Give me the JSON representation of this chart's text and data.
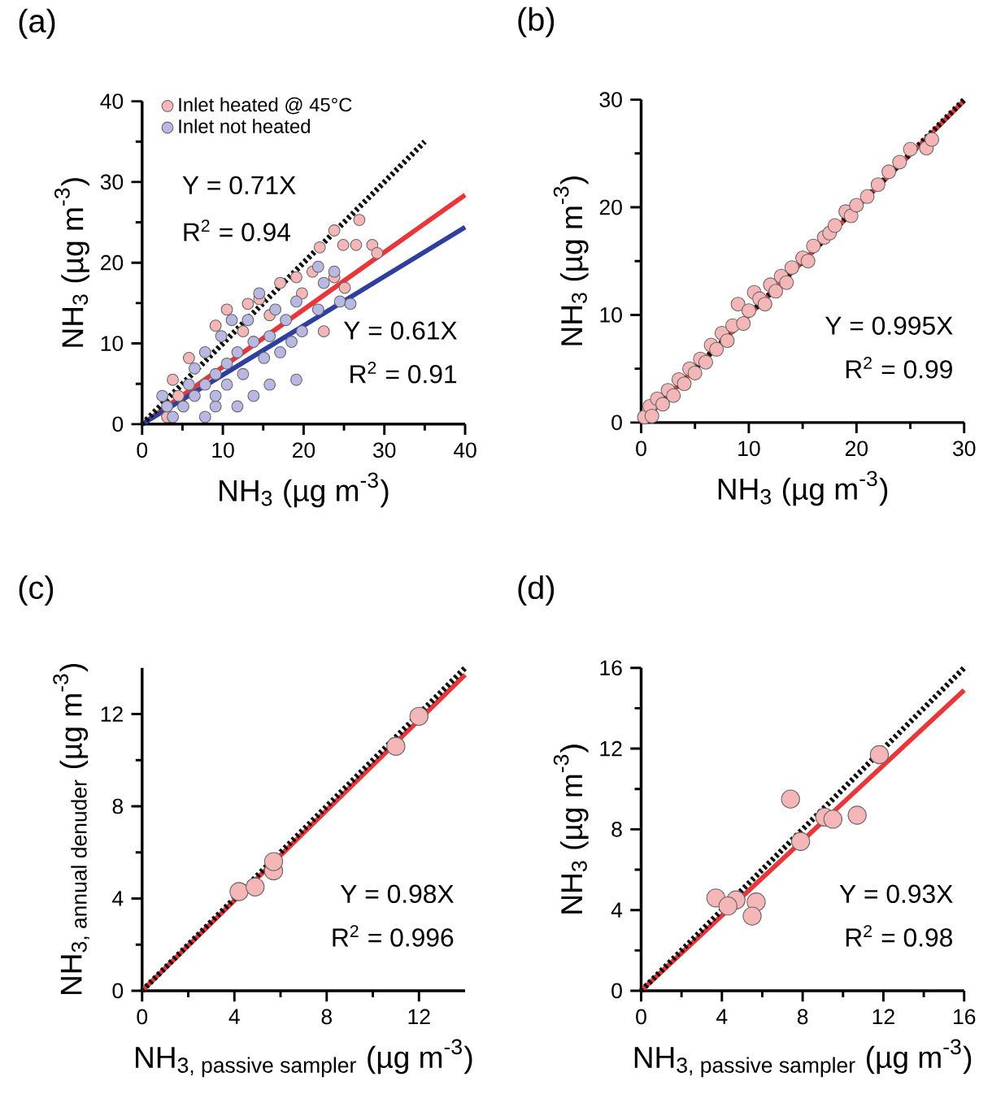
{
  "chart_data": [
    {
      "type": "scatter",
      "title": "(a)",
      "xlabel": "\\mbox{NH}_{\\mbox{\\fontsize{10}{12}\\selectfont 3}}\\mbox{ (µg m}^{\\mbox{\\fontsize{10}{12}\\selectfont -3}}\\mbox{)}",
      "ylabel": "\\mbox{NH}_{\\mbox{\\fontsize{10}{12}\\selectfont 3}}\\mbox{ (µg m}^{\\mbox{\\fontsize{10}{12}\\selectfont -3}}\\mbox{)}",
      "xlim": [
        0,
        40
      ],
      "ylim": [
        0,
        40
      ],
      "xticks": [
        0,
        10,
        20,
        30,
        40
      ],
      "yticks": [
        0,
        10,
        20,
        30,
        40
      ],
      "legend": "top left",
      "annotations": [
        "Y = 0.71X",
        "R$^{2}$ = 0.94",
        "Y = 0.61X",
        "R$^{2}$ = 0.91"
      ],
      "series": [
        {
          "name": "Inlet heated @ 45°C",
          "marker": "circle",
          "color": "#f4b6b6",
          "x": [
            23.8,
            26.9,
            22,
            24.9,
            26.5,
            28.5,
            29.1,
            21.1,
            22.5,
            19.1,
            17.1,
            14.5,
            13.1,
            10.5,
            9.1,
            5.8,
            3.8,
            3.1,
            25.1,
            23.8,
            4.5,
            15.8,
            19.8,
            12.5
          ],
          "values": [
            24,
            25.3,
            21.9,
            22.2,
            22.2,
            22.2,
            21.2,
            18.9,
            11.5,
            18.2,
            17.5,
            15.5,
            14.9,
            14.2,
            12.2,
            8.2,
            5.5,
            0.9,
            16.9,
            18.2,
            3.5,
            13.5,
            16.2,
            11.5
          ]
        },
        {
          "name": "Inlet not heated",
          "marker": "circle",
          "color": "#b8b8e2",
          "x": [
            24.5,
            25.8,
            22.5,
            23.8,
            21.8,
            19.1,
            19.1,
            17.1,
            15.8,
            14.5,
            13.1,
            11.8,
            10.5,
            9.1,
            7.8,
            5.8,
            6.5,
            5.1,
            3.1,
            2.5,
            9.8,
            11.1,
            7.8,
            12.5,
            15.8,
            13.8,
            17.8,
            16.5,
            19.8,
            21.8,
            9.1,
            10.5,
            15.1,
            18.5,
            13.8,
            7.8,
            11.8,
            3.8,
            6.5,
            9.1
          ],
          "values": [
            15.2,
            14.9,
            17.5,
            18.9,
            19.5,
            15.2,
            5.5,
            8.9,
            10.9,
            16.2,
            12.9,
            8.9,
            4.9,
            2.2,
            0.9,
            4.9,
            6.9,
            2.2,
            2.2,
            3.5,
            10.9,
            12.9,
            8.9,
            6.2,
            4.9,
            3.5,
            12.9,
            14.2,
            11.5,
            14.2,
            6.2,
            7.5,
            8.2,
            10.2,
            10.2,
            4.9,
            2.2,
            0.9,
            3.5,
            3.5
          ]
        },
        {
          "type": "line",
          "marker": "none",
          "color": "#e8373b",
          "line_style": "solid",
          "x": [
            0,
            40
          ],
          "values": [
            0,
            28.4
          ]
        },
        {
          "type": "line",
          "marker": "none",
          "color": "#2f3f9e",
          "line_style": "solid",
          "x": [
            0,
            40
          ],
          "values": [
            0,
            24.4
          ]
        },
        {
          "type": "line",
          "marker": "none",
          "color": "#111111",
          "line_style": "dotted",
          "x": [
            0,
            35
          ],
          "values": [
            0,
            35
          ]
        }
      ]
    },
    {
      "type": "scatter",
      "title": "(b)",
      "xlabel": "\\mbox{NH}_{\\mbox{\\fontsize{10}{12}\\selectfont 3}}\\mbox{ (µg m}^{\\mbox{\\fontsize{10}{12}\\selectfont -3}}\\mbox{)}",
      "ylabel": "\\mbox{NH}_{\\mbox{\\fontsize{10}{12}\\selectfont 3}}\\mbox{ (µg m}^{\\mbox{\\fontsize{10}{12}\\selectfont -3}}\\mbox{)}",
      "xlim": [
        0,
        30
      ],
      "ylim": [
        0,
        30
      ],
      "xticks": [
        0,
        10,
        20,
        30
      ],
      "yticks": [
        0,
        10,
        20,
        30
      ],
      "annotations": [
        "Y = 0.995X",
        "R$^{2}$ = 0.99"
      ],
      "series": [
        {
          "marker": "circle",
          "color": "#f4b6b6",
          "x": [
            0.3,
            0.8,
            1,
            1.5,
            2,
            2.5,
            3,
            3.5,
            4,
            4.5,
            5,
            5.5,
            6,
            6.5,
            7,
            7.5,
            8,
            8.5,
            9,
            9.5,
            10,
            10.5,
            11,
            11.5,
            12,
            12.5,
            13,
            13.5,
            14,
            15,
            15.5,
            16,
            17,
            17.5,
            18,
            19,
            19.5,
            20,
            21,
            22,
            23,
            24,
            25,
            26.5,
            27
          ],
          "values": [
            0.5,
            1.5,
            0.6,
            2.2,
            1.7,
            3,
            2.5,
            4,
            3.6,
            5,
            4.6,
            5.9,
            5.6,
            7.2,
            6.8,
            8.3,
            7.6,
            9,
            11,
            9.2,
            10.4,
            12.1,
            11.5,
            11,
            12.8,
            12.2,
            13.6,
            13,
            14.4,
            15.3,
            15,
            16.4,
            17.2,
            17.6,
            18.3,
            19.6,
            19.2,
            20.2,
            21,
            22.1,
            23.3,
            24.2,
            25.4,
            25.5,
            26.3
          ]
        },
        {
          "type": "line",
          "marker": "none",
          "color": "#e8373b",
          "line_style": "solid",
          "x": [
            0,
            30
          ],
          "values": [
            0,
            29.9
          ]
        },
        {
          "type": "line",
          "marker": "none",
          "color": "#111111",
          "line_style": "dotted",
          "x": [
            0,
            30
          ],
          "values": [
            0,
            30
          ]
        }
      ]
    },
    {
      "type": "scatter",
      "title": "(c)",
      "xlabel": "\\mbox{NH}_{\\mbox{\\fontsize{10}{12}\\selectfont 3, passive sampler}}\\mbox{ (µg m}^{\\mbox{\\fontsize{10}{12}\\selectfont -3}}\\mbox{)}",
      "ylabel": "\\mbox{NH}_{\\mbox{\\fontsize{10}{12}\\selectfont 3, annual denuder}}\\mbox{ (µg m}^{\\mbox{\\fontsize{10}{12}\\selectfont -3}}\\mbox{)}",
      "xlim": [
        0,
        14
      ],
      "ylim": [
        0,
        14
      ],
      "xticks": [
        0,
        4,
        8,
        12
      ],
      "yticks": [
        0,
        4,
        8,
        12
      ],
      "annotations": [
        "Y = 0.98X",
        "R$^{2}$ = 0.996"
      ],
      "series": [
        {
          "marker": "circle",
          "color": "#f4b6b6",
          "x": [
            4.2,
            4.9,
            5.7,
            5.7,
            11,
            12
          ],
          "values": [
            4.3,
            4.5,
            5.2,
            5.6,
            10.6,
            11.9
          ]
        },
        {
          "type": "line",
          "marker": "none",
          "color": "#e8373b",
          "line_style": "solid",
          "x": [
            0,
            14
          ],
          "values": [
            0,
            13.7
          ]
        },
        {
          "type": "line",
          "marker": "none",
          "color": "#111111",
          "line_style": "dotted",
          "x": [
            0,
            14
          ],
          "values": [
            0,
            14
          ]
        }
      ]
    },
    {
      "type": "scatter",
      "title": "(d)",
      "xlabel": "\\mbox{NH}_{\\mbox{\\fontsize{10}{12}\\selectfont 3, passive sampler}}\\mbox{ (µg m}^{\\mbox{\\fontsize{10}{12}\\selectfont -3}}\\mbox{)}",
      "ylabel": "\\mbox{NH}_{\\mbox{\\fontsize{10}{12}\\selectfont 3}}\\mbox{ (µg m}^{\\mbox{\\fontsize{10}{12}\\selectfont -3}}\\mbox{)}",
      "xlim": [
        0,
        16
      ],
      "ylim": [
        0,
        16
      ],
      "xticks": [
        0,
        4,
        8,
        12,
        16
      ],
      "yticks": [
        0,
        4,
        8,
        12,
        16
      ],
      "annotations": [
        "Y = 0.93X",
        "R$^{2}$ = 0.98"
      ],
      "series": [
        {
          "marker": "circle",
          "color": "#f4b6b6",
          "x": [
            7.4,
            7.9,
            9.1,
            9.5,
            10.7,
            11.8,
            3.7,
            4.7,
            5.7,
            5.5,
            4.3
          ],
          "values": [
            9.5,
            7.4,
            8.6,
            8.5,
            8.7,
            11.7,
            4.6,
            4.5,
            4.4,
            3.7,
            4.2
          ]
        },
        {
          "type": "line",
          "marker": "none",
          "color": "#e8373b",
          "line_style": "solid",
          "x": [
            0,
            16
          ],
          "values": [
            0,
            14.9
          ]
        },
        {
          "type": "line",
          "marker": "none",
          "color": "#111111",
          "line_style": "dotted",
          "x": [
            0,
            16
          ],
          "values": [
            0,
            16
          ]
        }
      ]
    }
  ]
}
